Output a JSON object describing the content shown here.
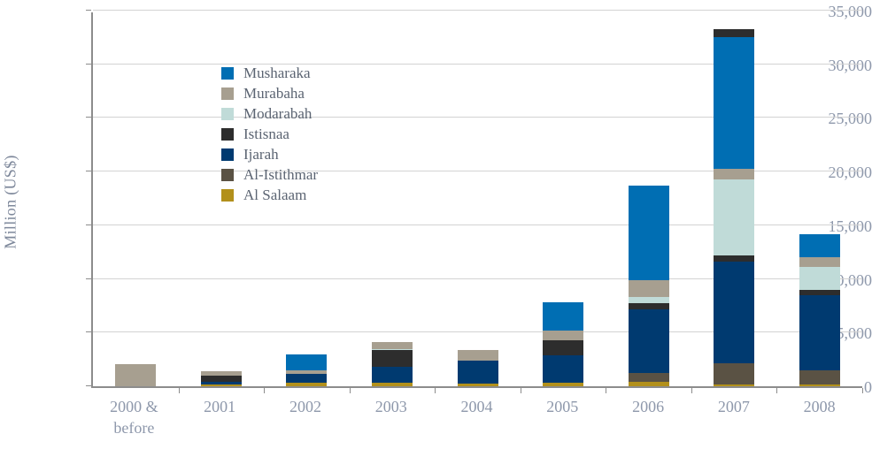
{
  "chart_data": {
    "type": "stacked_bar",
    "title": "",
    "xlabel": "",
    "ylabel": "Million (US$)",
    "ylim": [
      0,
      35000
    ],
    "grid": true,
    "legend_position": "upper-left-inside",
    "yticks": [
      {
        "value": 0,
        "label": "0"
      },
      {
        "value": 5000,
        "label": "5,000"
      },
      {
        "value": 10000,
        "label": "10,000"
      },
      {
        "value": 15000,
        "label": "15,000"
      },
      {
        "value": 20000,
        "label": "20,000"
      },
      {
        "value": 25000,
        "label": "25,000"
      },
      {
        "value": 30000,
        "label": "30,000"
      },
      {
        "value": 35000,
        "label": "35,000"
      }
    ],
    "legend": [
      {
        "name": "Musharaka",
        "color": "#006eb3"
      },
      {
        "name": "Murabaha",
        "color": "#a79f90"
      },
      {
        "name": "Modarabah",
        "color": "#c0dbd8"
      },
      {
        "name": "Istisnaa",
        "color": "#2d2d2d"
      },
      {
        "name": "Ijarah",
        "color": "#003a70"
      },
      {
        "name": "Al-Istithmar",
        "color": "#5a5244"
      },
      {
        "name": "Al Salaam",
        "color": "#b2901b"
      }
    ],
    "categories": [
      "2000 & before",
      "2001",
      "2002",
      "2003",
      "2004",
      "2005",
      "2006",
      "2007",
      "2008"
    ],
    "bars": [
      {
        "category": "2000 & before",
        "label_lines": [
          "2000 &",
          "before"
        ],
        "total": 2050,
        "segments": [
          {
            "name": "Murabaha",
            "value": 2050
          }
        ]
      },
      {
        "category": "2001",
        "label_lines": [
          "2001"
        ],
        "total": 1400,
        "segments": [
          {
            "name": "Al Salaam",
            "value": 150
          },
          {
            "name": "Ijarah",
            "value": 250
          },
          {
            "name": "Istisnaa",
            "value": 550
          },
          {
            "name": "Murabaha",
            "value": 450
          }
        ]
      },
      {
        "category": "2002",
        "label_lines": [
          "2002"
        ],
        "total": 3000,
        "segments": [
          {
            "name": "Al Salaam",
            "value": 300
          },
          {
            "name": "Ijarah",
            "value": 850
          },
          {
            "name": "Murabaha",
            "value": 300
          },
          {
            "name": "Musharaka",
            "value": 1550
          }
        ]
      },
      {
        "category": "2003",
        "label_lines": [
          "2003"
        ],
        "total": 4100,
        "segments": [
          {
            "name": "Al Salaam",
            "value": 300
          },
          {
            "name": "Ijarah",
            "value": 1550
          },
          {
            "name": "Istisnaa",
            "value": 1500
          },
          {
            "name": "Modarabah",
            "value": 100
          },
          {
            "name": "Murabaha",
            "value": 650
          }
        ]
      },
      {
        "category": "2004",
        "label_lines": [
          "2004"
        ],
        "total": 3400,
        "segments": [
          {
            "name": "Al Salaam",
            "value": 250
          },
          {
            "name": "Ijarah",
            "value": 2150
          },
          {
            "name": "Murabaha",
            "value": 1000
          }
        ]
      },
      {
        "category": "2005",
        "label_lines": [
          "2005"
        ],
        "total": 7800,
        "segments": [
          {
            "name": "Al Salaam",
            "value": 300
          },
          {
            "name": "Ijarah",
            "value": 2550
          },
          {
            "name": "Istisnaa",
            "value": 1450
          },
          {
            "name": "Murabaha",
            "value": 900
          },
          {
            "name": "Musharaka",
            "value": 2600
          }
        ]
      },
      {
        "category": "2006",
        "label_lines": [
          "2006"
        ],
        "total": 18700,
        "segments": [
          {
            "name": "Al Salaam",
            "value": 450
          },
          {
            "name": "Al-Istithmar",
            "value": 800
          },
          {
            "name": "Ijarah",
            "value": 5900
          },
          {
            "name": "Istisnaa",
            "value": 600
          },
          {
            "name": "Modarabah",
            "value": 600
          },
          {
            "name": "Murabaha",
            "value": 1500
          },
          {
            "name": "Musharaka",
            "value": 8850
          }
        ]
      },
      {
        "category": "2007",
        "label_lines": [
          "2007"
        ],
        "total": 33300,
        "segments": [
          {
            "name": "Al Salaam",
            "value": 200
          },
          {
            "name": "Al-Istithmar",
            "value": 1950
          },
          {
            "name": "Ijarah",
            "value": 9450
          },
          {
            "name": "Istisnaa",
            "value": 600
          },
          {
            "name": "Modarabah",
            "value": 7100
          },
          {
            "name": "Murabaha",
            "value": 950
          },
          {
            "name": "Musharaka",
            "value": 12250
          },
          {
            "name": "Istisnaa",
            "value": 800
          }
        ]
      },
      {
        "category": "2008",
        "label_lines": [
          "2008"
        ],
        "total": 14200,
        "segments": [
          {
            "name": "Al Salaam",
            "value": 200
          },
          {
            "name": "Al-Istithmar",
            "value": 1250
          },
          {
            "name": "Ijarah",
            "value": 7000
          },
          {
            "name": "Istisnaa",
            "value": 550
          },
          {
            "name": "Modarabah",
            "value": 2150
          },
          {
            "name": "Murabaha",
            "value": 850
          },
          {
            "name": "Musharaka",
            "value": 2200
          }
        ]
      }
    ]
  },
  "style_colors": {
    "axis": "#8c8c8c",
    "gridline": "#d3d3d3",
    "tick_label": "#8e98ab",
    "legend_text": "#5b6472",
    "background": "#ffffff"
  }
}
